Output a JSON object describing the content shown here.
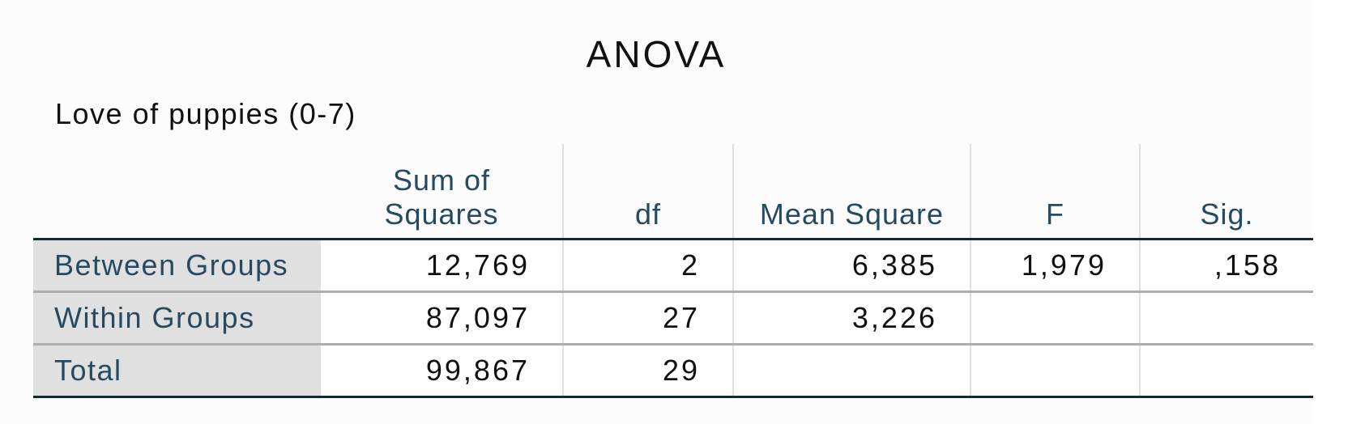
{
  "title": "ANOVA",
  "dependent_variable": "Love of puppies (0-7)",
  "table": {
    "headers": [
      "",
      "Sum of Squares",
      "df",
      "Mean Square",
      "F",
      "Sig."
    ],
    "rows": [
      {
        "label": "Between Groups",
        "sum_of_squares": "12,769",
        "df": "2",
        "mean_square": "6,385",
        "f": "1,979",
        "sig": ",158"
      },
      {
        "label": "Within Groups",
        "sum_of_squares": "87,097",
        "df": "27",
        "mean_square": "3,226",
        "f": "",
        "sig": ""
      },
      {
        "label": "Total",
        "sum_of_squares": "99,867",
        "df": "29",
        "mean_square": "",
        "f": "",
        "sig": ""
      }
    ]
  },
  "colors": {
    "header_text": "#264a60",
    "row_label_bg": "#e0e0e0",
    "rule_dark": "#152935",
    "rule_light": "#aeaeae"
  }
}
